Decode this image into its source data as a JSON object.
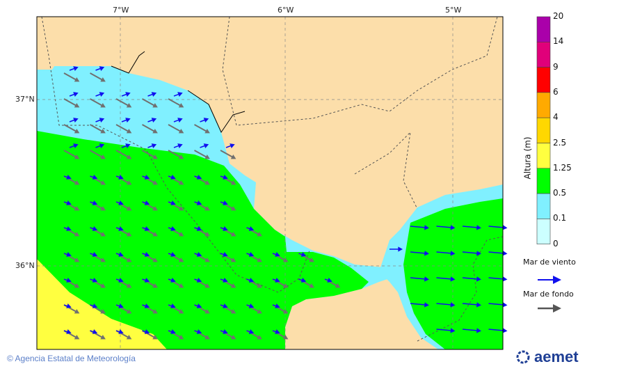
{
  "map": {
    "lon_labels": [
      "7°W",
      "6°W",
      "5°W"
    ],
    "lat_labels": [
      "37°N",
      "36°N"
    ],
    "colors": {
      "land": "#fcdeaa",
      "sea_0_0.1": "#ccffff",
      "sea_0.1_0.5": "#80f0ff",
      "sea_0.5_1.25": "#00ff00",
      "sea_1.25_2.5": "#ffff40",
      "wind_sea_arrow": "#1010ee",
      "swell_arrow": "#707070"
    },
    "swell_direction": "ESE",
    "wind_sea_direction": "E"
  },
  "colorbar": {
    "title": "Altura (m)",
    "ticks": [
      "20",
      "14",
      "9",
      "6",
      "4",
      "2.5",
      "1.25",
      "0.5",
      "0.1",
      "0"
    ],
    "colors": [
      "#aa00aa",
      "#e0007a",
      "#ff0000",
      "#ffaa00",
      "#ffd700",
      "#ffff40",
      "#00ff00",
      "#80f0ff",
      "#ccffff"
    ]
  },
  "legend": {
    "wind_sea": "Mar de viento",
    "swell": "Mar de fondo"
  },
  "footer": {
    "copyright": "Agencia Estatal de Meteorología",
    "logo": "aemet"
  }
}
